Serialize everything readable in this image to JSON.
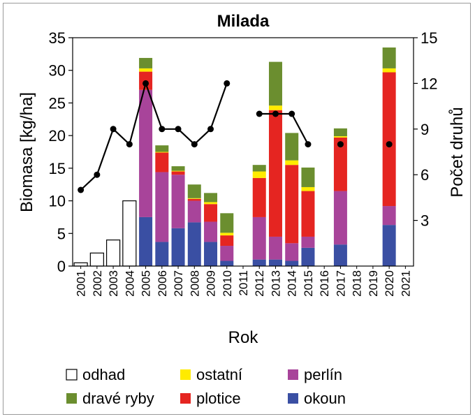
{
  "chart_data": {
    "type": "bar",
    "title": "Milada",
    "xlabel": "Rok",
    "ylabel": "Biomasa [kg/ha]",
    "y2label": "Počet druhů",
    "ylim": [
      0,
      35
    ],
    "y2lim": [
      0,
      15
    ],
    "yticks": [
      "0",
      "5",
      "10",
      "15",
      "20",
      "25",
      "30",
      "35"
    ],
    "y2ticks": [
      "3",
      "6",
      "9",
      "12",
      "15"
    ],
    "categories": [
      "2001",
      "2002",
      "2003",
      "2004",
      "2005",
      "2006",
      "2007",
      "2008",
      "2009",
      "2010",
      "2011",
      "2012",
      "2013",
      "2014",
      "2015",
      "2016",
      "2017",
      "2018",
      "2019",
      "2020",
      "2021"
    ],
    "odhad": {
      "name": "odhad",
      "color": "#ffffff",
      "values": [
        0.5,
        2.0,
        4.0,
        10.0,
        null,
        null,
        null,
        null,
        null,
        null,
        null,
        null,
        null,
        null,
        null,
        null,
        null,
        null,
        null,
        null,
        null
      ]
    },
    "series": [
      {
        "name": "okoun",
        "color": "#3a4fa3",
        "values": [
          null,
          null,
          null,
          null,
          7.5,
          3.7,
          5.8,
          6.7,
          3.7,
          0.8,
          null,
          1.0,
          1.0,
          0.8,
          2.8,
          null,
          3.3,
          null,
          null,
          6.3,
          null
        ]
      },
      {
        "name": "perlín",
        "color": "#a8449a",
        "values": [
          null,
          null,
          null,
          null,
          19.5,
          10.7,
          8.2,
          3.3,
          3.1,
          2.3,
          null,
          6.5,
          3.5,
          2.7,
          1.7,
          null,
          8.2,
          null,
          null,
          2.9,
          null
        ]
      },
      {
        "name": "plotice",
        "color": "#e52521",
        "values": [
          null,
          null,
          null,
          null,
          2.8,
          3.0,
          0.5,
          0.3,
          2.7,
          1.6,
          null,
          6.0,
          19.4,
          12.0,
          7.0,
          null,
          8.2,
          null,
          null,
          20.5,
          null
        ]
      },
      {
        "name": "ostatní",
        "color": "#ffeb00",
        "values": [
          null,
          null,
          null,
          null,
          0.5,
          0.1,
          0.1,
          0.1,
          0.3,
          0.4,
          null,
          1.0,
          0.7,
          0.7,
          0.6,
          null,
          0.2,
          null,
          null,
          0.6,
          null
        ]
      },
      {
        "name": "dravé ryby",
        "color": "#6b8e2f",
        "values": [
          null,
          null,
          null,
          null,
          1.6,
          1.0,
          0.7,
          2.1,
          1.4,
          3.0,
          null,
          1.0,
          6.7,
          4.2,
          3.0,
          null,
          1.2,
          null,
          null,
          3.2,
          null
        ]
      }
    ],
    "species_count": {
      "axis": "right",
      "values": [
        5,
        6,
        9,
        8,
        12,
        9,
        9,
        8,
        9,
        12,
        null,
        10,
        10,
        10,
        8,
        null,
        8,
        null,
        null,
        8,
        null
      ]
    },
    "legend": {
      "placement": "bottom",
      "order": [
        "odhad",
        "ostatní",
        "perlín",
        "dravé ryby",
        "plotice",
        "okoun"
      ]
    },
    "grid": false
  }
}
